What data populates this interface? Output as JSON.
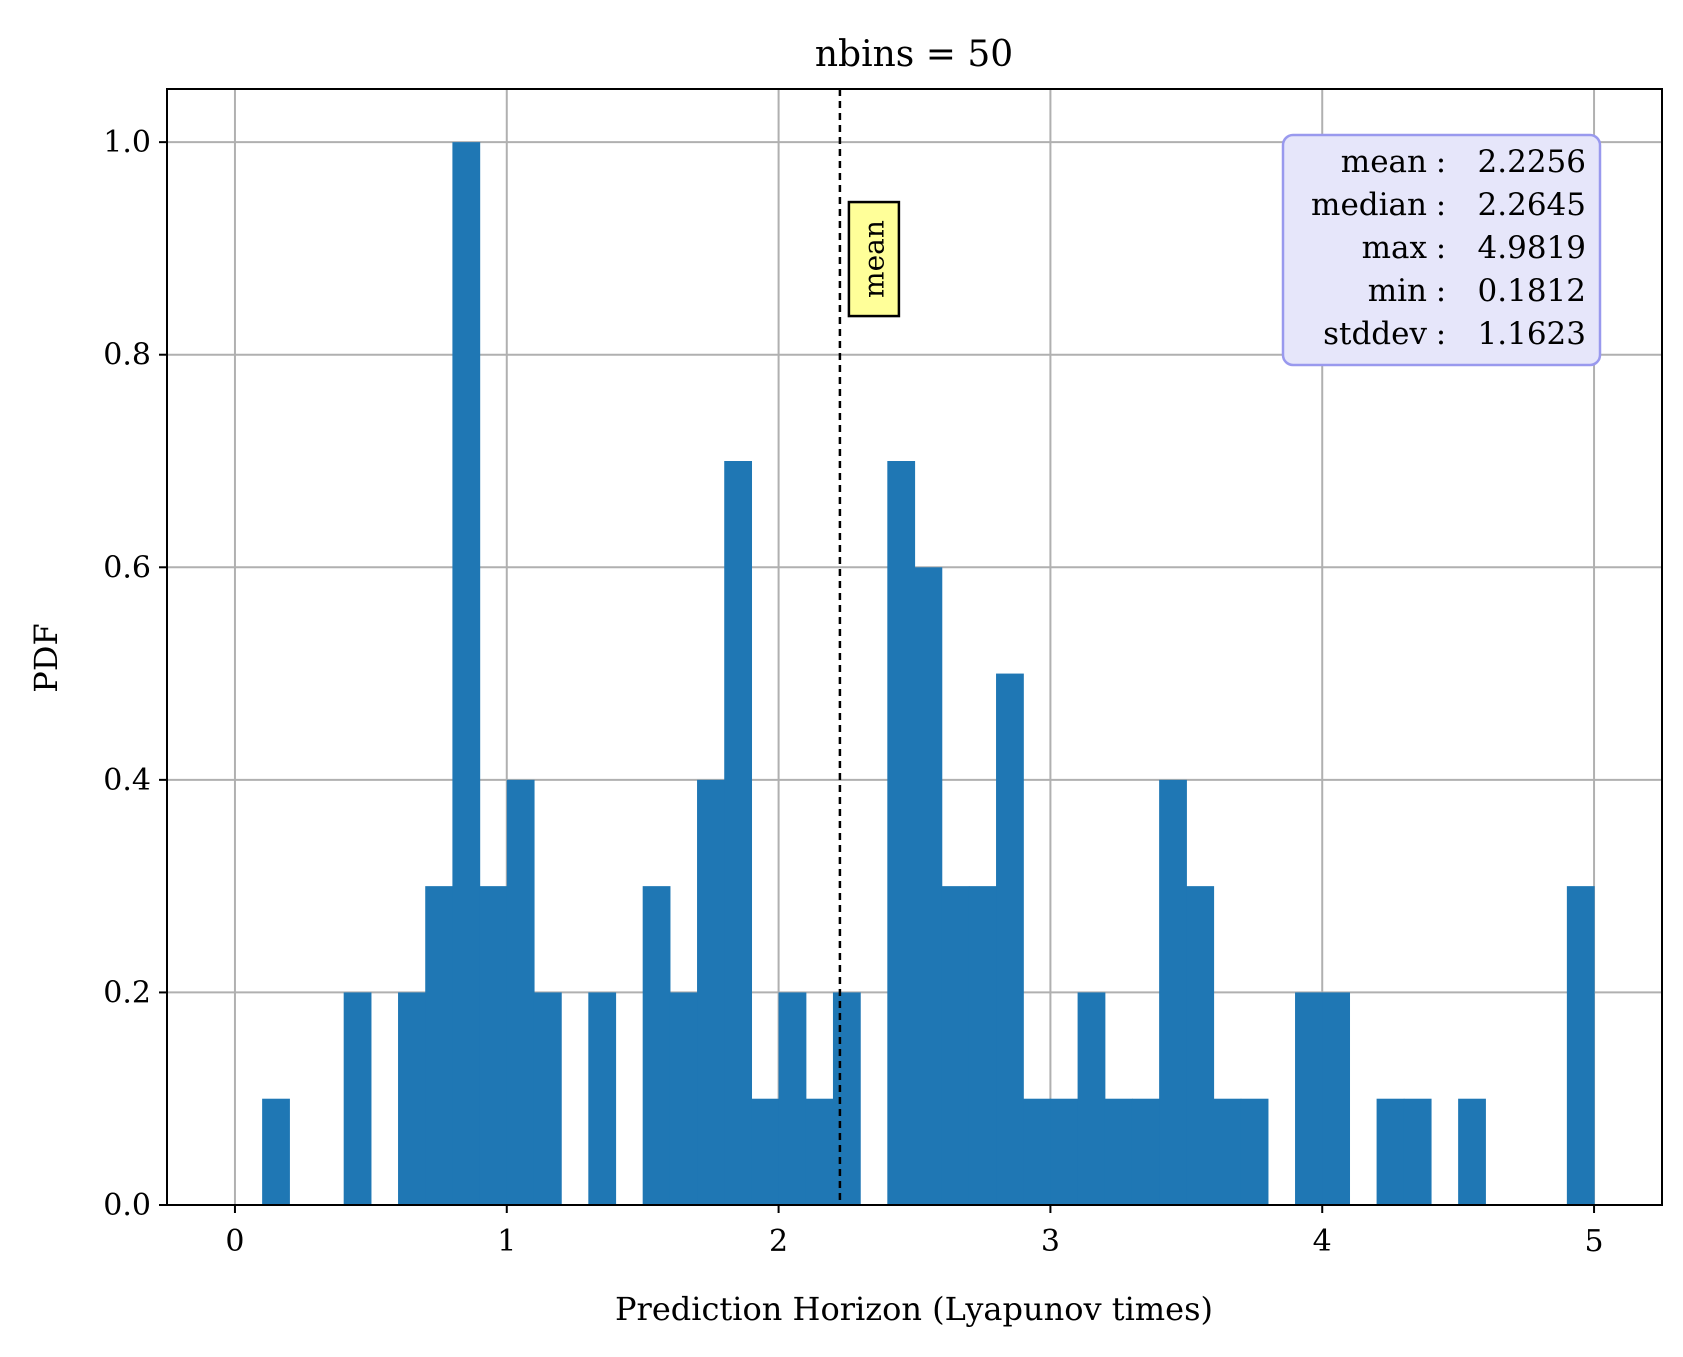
{
  "chart_data": {
    "type": "bar",
    "title": "nbins = 50",
    "xlabel": "Prediction Horizon (Lyapunov times)",
    "ylabel": "PDF",
    "xlim": [
      -0.25,
      5.25
    ],
    "ylim": [
      0,
      1.05
    ],
    "xticks": [
      {
        "value": 0,
        "label": "0"
      },
      {
        "value": 1,
        "label": "1"
      },
      {
        "value": 2,
        "label": "2"
      },
      {
        "value": 3,
        "label": "3"
      },
      {
        "value": 4,
        "label": "4"
      },
      {
        "value": 5,
        "label": "5"
      }
    ],
    "yticks": [
      {
        "value": 0.0,
        "label": "0.0"
      },
      {
        "value": 0.2,
        "label": "0.2"
      },
      {
        "value": 0.4,
        "label": "0.4"
      },
      {
        "value": 0.6,
        "label": "0.6"
      },
      {
        "value": 0.8,
        "label": "0.8"
      },
      {
        "value": 1.0,
        "label": "1.0"
      }
    ],
    "grid": true,
    "bin_width": 0.1,
    "bins": [
      {
        "x0": 0.1,
        "value": 0.1
      },
      {
        "x0": 0.4,
        "value": 0.2
      },
      {
        "x0": 0.6,
        "value": 0.2
      },
      {
        "x0": 0.7,
        "value": 0.3
      },
      {
        "x0": 0.8,
        "value": 1.0
      },
      {
        "x0": 0.9,
        "value": 0.3
      },
      {
        "x0": 1.0,
        "value": 0.4
      },
      {
        "x0": 1.1,
        "value": 0.2
      },
      {
        "x0": 1.3,
        "value": 0.2
      },
      {
        "x0": 1.5,
        "value": 0.3
      },
      {
        "x0": 1.6,
        "value": 0.2
      },
      {
        "x0": 1.7,
        "value": 0.4
      },
      {
        "x0": 1.8,
        "value": 0.7
      },
      {
        "x0": 1.9,
        "value": 0.1
      },
      {
        "x0": 2.0,
        "value": 0.2
      },
      {
        "x0": 2.1,
        "value": 0.1
      },
      {
        "x0": 2.2,
        "value": 0.2
      },
      {
        "x0": 2.4,
        "value": 0.7
      },
      {
        "x0": 2.5,
        "value": 0.6
      },
      {
        "x0": 2.6,
        "value": 0.3
      },
      {
        "x0": 2.7,
        "value": 0.3
      },
      {
        "x0": 2.8,
        "value": 0.5
      },
      {
        "x0": 2.9,
        "value": 0.1
      },
      {
        "x0": 3.0,
        "value": 0.1
      },
      {
        "x0": 3.1,
        "value": 0.2
      },
      {
        "x0": 3.2,
        "value": 0.1
      },
      {
        "x0": 3.3,
        "value": 0.1
      },
      {
        "x0": 3.4,
        "value": 0.4
      },
      {
        "x0": 3.5,
        "value": 0.3
      },
      {
        "x0": 3.6,
        "value": 0.1
      },
      {
        "x0": 3.7,
        "value": 0.1
      },
      {
        "x0": 3.9,
        "value": 0.2
      },
      {
        "x0": 4.0,
        "value": 0.2
      },
      {
        "x0": 4.2,
        "value": 0.1
      },
      {
        "x0": 4.3,
        "value": 0.1
      },
      {
        "x0": 4.5,
        "value": 0.1
      },
      {
        "x0": 4.9,
        "value": 0.3
      }
    ],
    "mean_line": {
      "value": 2.2256,
      "label": "mean"
    },
    "stats_box": [
      {
        "label": "mean",
        "value": "2.2256"
      },
      {
        "label": "median",
        "value": "2.2645"
      },
      {
        "label": "max",
        "value": "4.9819"
      },
      {
        "label": "min",
        "value": "0.1812"
      },
      {
        "label": "stddev",
        "value": "1.1623"
      }
    ],
    "colors": {
      "bar": "#1f77b4",
      "grid": "#b0b0b0",
      "stats_box_fill": "#e6e6fa",
      "stats_box_edge": "#9999ee",
      "mean_label_fill": "#ffff99"
    }
  }
}
